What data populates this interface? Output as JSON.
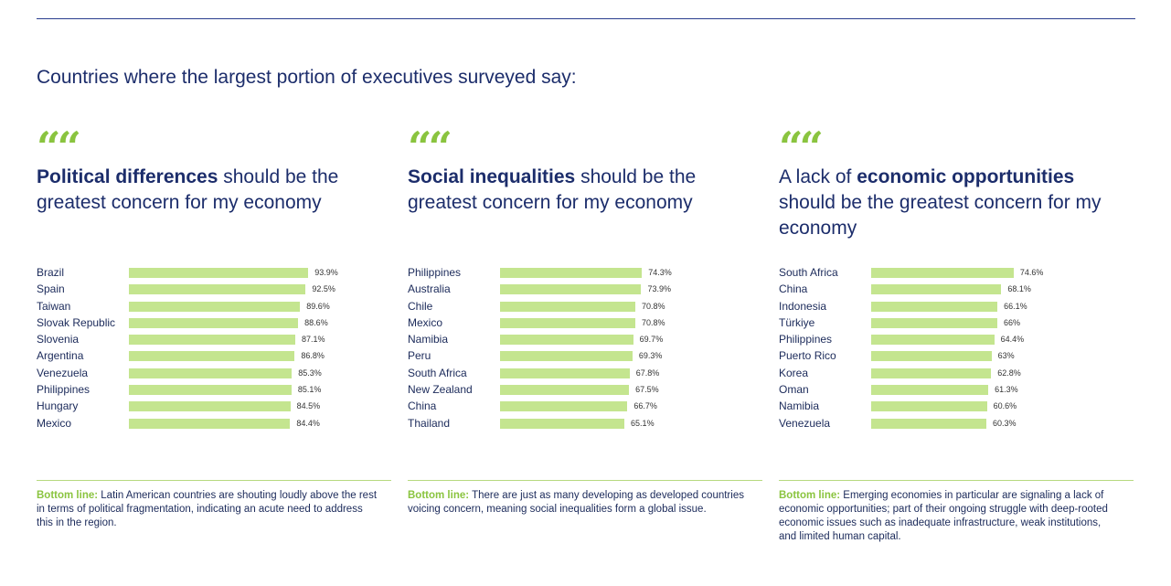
{
  "intro": "Countries where the largest portion of executives surveyed say:",
  "quote_glyph": "“",
  "colors": {
    "bar": "#c4e58f",
    "accent": "#8ac43f",
    "navy": "#1c2d6b"
  },
  "panels": [
    {
      "heading_pre": "",
      "heading_bold": "Political differences",
      "heading_post": " should be the greatest concern for my economy",
      "bottom_label": "Bottom line:",
      "bottom_text": " Latin American countries are shouting loudly above the rest in terms of political fragmentation, indicating an acute need to address this in the region."
    },
    {
      "heading_pre": "",
      "heading_bold": "Social inequalities",
      "heading_post": " should be the greatest concern for my economy",
      "bottom_label": "Bottom line:",
      "bottom_text": " There are just as many developing as developed countries voicing concern, meaning social inequalities form a global issue."
    },
    {
      "heading_pre": "A lack of ",
      "heading_bold": "economic opportunities",
      "heading_post": " should be the greatest concern for my economy",
      "bottom_label": "Bottom line:",
      "bottom_text": " Emerging economies in particular are signaling a lack of economic opportunities; part of their ongoing struggle with deep-rooted economic issues such as inadequate infrastructure, weak institutions, and limited human capital."
    }
  ],
  "chart_data": [
    {
      "type": "bar",
      "orientation": "horizontal",
      "categories": [
        "Brazil",
        "Spain",
        "Taiwan",
        "Slovak Republic",
        "Slovenia",
        "Argentina",
        "Venezuela",
        "Philippines",
        "Hungary",
        "Mexico"
      ],
      "values": [
        93.9,
        92.5,
        89.6,
        88.6,
        87.1,
        86.8,
        85.3,
        85.1,
        84.5,
        84.4
      ],
      "value_labels": [
        "93.9%",
        "92.5%",
        "89.6%",
        "88.6%",
        "87.1%",
        "86.8%",
        "85.3%",
        "85.1%",
        "84.5%",
        "84.4%"
      ],
      "title": "Political differences should be the greatest concern for my economy",
      "xlim": [
        0,
        100
      ]
    },
    {
      "type": "bar",
      "orientation": "horizontal",
      "categories": [
        "Philippines",
        "Australia",
        "Chile",
        "Mexico",
        "Namibia",
        "Peru",
        "South Africa",
        "New Zealand",
        "China",
        "Thailand"
      ],
      "values": [
        74.3,
        73.9,
        70.8,
        70.8,
        69.7,
        69.3,
        67.8,
        67.5,
        66.7,
        65.1
      ],
      "value_labels": [
        "74.3%",
        "73.9%",
        "70.8%",
        "70.8%",
        "69.7%",
        "69.3%",
        "67.8%",
        "67.5%",
        "66.7%",
        "65.1%"
      ],
      "title": "Social inequalities should be the greatest concern for my economy",
      "xlim": [
        0,
        100
      ]
    },
    {
      "type": "bar",
      "orientation": "horizontal",
      "categories": [
        "South Africa",
        "China",
        "Indonesia",
        "Türkiye",
        "Philippines",
        "Puerto Rico",
        "Korea",
        "Oman",
        "Namibia",
        "Venezuela"
      ],
      "values": [
        74.6,
        68.1,
        66.1,
        66,
        64.4,
        63,
        62.8,
        61.3,
        60.6,
        60.3
      ],
      "value_labels": [
        "74.6%",
        "68.1%",
        "66.1%",
        "66%",
        "64.4%",
        "63%",
        "62.8%",
        "61.3%",
        "60.6%",
        "60.3%"
      ],
      "title": "A lack of economic opportunities should be the greatest concern for my economy",
      "xlim": [
        0,
        100
      ]
    }
  ]
}
